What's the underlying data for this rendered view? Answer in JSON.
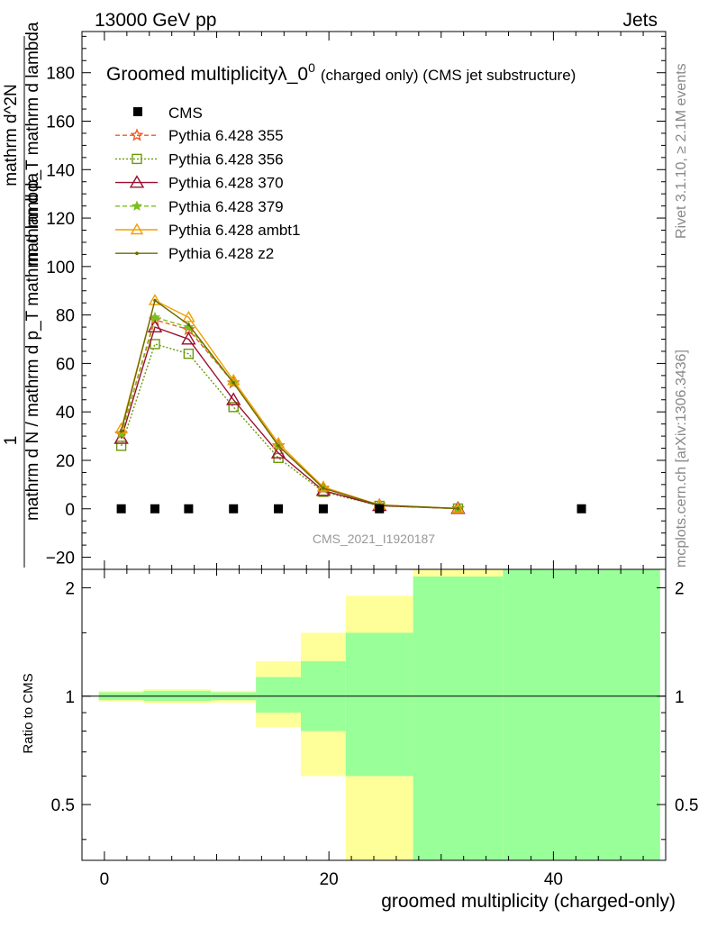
{
  "header": {
    "energy": "13000 GeV pp",
    "process": "Jets",
    "rivet_label": "Rivet 3.1.10, ≥ 2.1M events",
    "site_label": "mcplots.cern.ch [arXiv:1306.3436]"
  },
  "chart_data": {
    "type": "line",
    "title_main": "Groomed multiplicityλ_0",
    "title_sup": "0",
    "title_suffix": "(charged only) (CMS jet substructure)",
    "watermark": "CMS_2021_I1920187",
    "ylabel_top": "1",
    "ylabel_bottom": "mathrm d N / mathrm d p_T mathrm d lambda",
    "ylabel_alt_top": "mathrm d^2N",
    "ylabel_alt_bottom": "mathrm d p_T mathrm d lambda",
    "xlabel": "groomed multiplicity (charged-only)",
    "ratio_ylabel": "Ratio to CMS",
    "xlim": [
      -2,
      50
    ],
    "ylim": [
      -25,
      197
    ],
    "ratio_ylim": [
      0.35,
      2.25
    ],
    "x_ticks": [
      "0",
      "20",
      "40"
    ],
    "y_ticks": [
      "−20",
      "0",
      "20",
      "40",
      "60",
      "80",
      "100",
      "120",
      "140",
      "160",
      "180"
    ],
    "ratio_ticks": [
      "0.5",
      "1",
      "2"
    ],
    "x_tick_values": [
      0,
      20,
      40
    ],
    "y_tick_values": [
      -20,
      0,
      20,
      40,
      60,
      80,
      100,
      120,
      140,
      160,
      180
    ],
    "ratio_tick_values": [
      0.5,
      1,
      2
    ],
    "grid": false,
    "legend_position": "top-left",
    "data": {
      "name": "CMS",
      "color": "#000000",
      "x": [
        1.5,
        4.5,
        7.5,
        11.5,
        15.5,
        19.5,
        24.5,
        42.5
      ],
      "y": [
        0,
        0,
        0,
        0,
        0,
        0,
        0,
        0
      ]
    },
    "series": [
      {
        "name": "Pythia 6.428 355",
        "color": "#ee5a24",
        "dash": "5,3",
        "marker": "star",
        "x": [
          1.5,
          4.5,
          7.5,
          11.5,
          15.5,
          19.5,
          24.5,
          31.5
        ],
        "y": [
          31,
          78,
          74,
          52,
          26,
          8.5,
          1.5,
          0.1
        ]
      },
      {
        "name": "Pythia 6.428 356",
        "color": "#6a9a0a",
        "dash": "2,2",
        "marker": "square",
        "x": [
          1.5,
          4.5,
          7.5,
          11.5,
          15.5,
          19.5,
          24.5,
          31.5
        ],
        "y": [
          26,
          68,
          64,
          42,
          21,
          7,
          1.2,
          0.1
        ]
      },
      {
        "name": "Pythia 6.428 370",
        "color": "#9a0f2f",
        "dash": "",
        "marker": "triangle",
        "x": [
          1.5,
          4.5,
          7.5,
          11.5,
          15.5,
          19.5,
          24.5,
          31.5
        ],
        "y": [
          29,
          75,
          70,
          45,
          23,
          7.5,
          1.3,
          0.1
        ]
      },
      {
        "name": "Pythia 6.428 379",
        "color": "#7abf1e",
        "dash": "5,3",
        "marker": "smallstar",
        "x": [
          1.5,
          4.5,
          7.5,
          11.5,
          15.5,
          19.5,
          24.5,
          31.5
        ],
        "y": [
          31,
          79,
          75,
          52,
          26,
          8.5,
          1.5,
          0.1
        ]
      },
      {
        "name": "Pythia 6.428 ambt1",
        "color": "#f0a000",
        "dash": "",
        "marker": "opentriangle",
        "x": [
          1.5,
          4.5,
          7.5,
          11.5,
          15.5,
          19.5,
          24.5,
          31.5
        ],
        "y": [
          33,
          86,
          79,
          53,
          27,
          9,
          1.6,
          0.1
        ]
      },
      {
        "name": "Pythia 6.428 z2",
        "color": "#6b6b00",
        "dash": "",
        "marker": "dot",
        "x": [
          1.5,
          4.5,
          7.5,
          11.5,
          15.5,
          19.5,
          24.5,
          31.5
        ],
        "y": [
          32,
          86,
          76,
          52,
          26,
          8.5,
          1.5,
          0.1
        ]
      }
    ],
    "ratio_bands": {
      "outer_color": "#ffff99",
      "inner_color": "#99ff99",
      "bins": [
        {
          "x0": -0.5,
          "x1": 3.5,
          "outer": [
            0.965,
            1.035
          ],
          "inner": [
            0.975,
            1.025
          ]
        },
        {
          "x0": 3.5,
          "x1": 9.5,
          "outer": [
            0.955,
            1.045
          ],
          "inner": [
            0.97,
            1.035
          ]
        },
        {
          "x0": 9.5,
          "x1": 13.5,
          "outer": [
            0.96,
            1.035
          ],
          "inner": [
            0.975,
            1.025
          ]
        },
        {
          "x0": 13.5,
          "x1": 17.5,
          "outer": [
            0.82,
            1.25
          ],
          "inner": [
            0.9,
            1.13
          ]
        },
        {
          "x0": 17.5,
          "x1": 21.5,
          "outer": [
            0.6,
            1.5
          ],
          "inner": [
            0.8,
            1.25
          ]
        },
        {
          "x0": 21.5,
          "x1": 27.5,
          "outer": [
            0.35,
            1.9
          ],
          "inner": [
            0.6,
            1.5
          ]
        },
        {
          "x0": 27.5,
          "x1": 35.5,
          "outer": [
            0.35,
            2.25
          ],
          "inner": [
            0.35,
            2.15
          ]
        },
        {
          "x0": 35.5,
          "x1": 49.5,
          "outer": [
            0.35,
            2.25
          ],
          "inner": [
            0.35,
            2.25
          ]
        }
      ]
    }
  }
}
